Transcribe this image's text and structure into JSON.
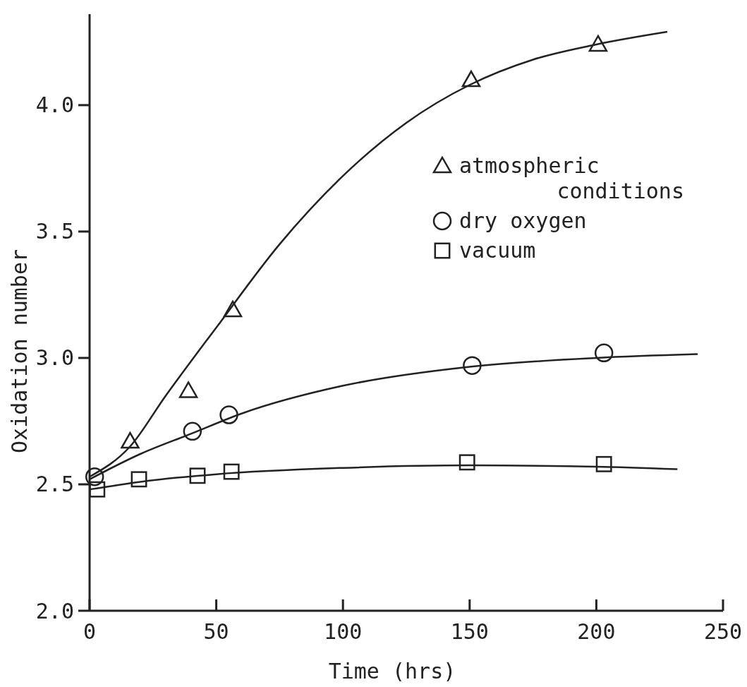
{
  "chart_data": {
    "type": "scatter",
    "xlabel": "Time (hrs)",
    "ylabel": "Oxidation number",
    "xlim": [
      0,
      250
    ],
    "ylim": [
      2.0,
      4.36
    ],
    "xticks": [
      0,
      50,
      100,
      150,
      200,
      250
    ],
    "yticks": [
      {
        "value": 2.0,
        "label": "2.0"
      },
      2.5,
      {
        "value": 3.0,
        "label": "3.0"
      },
      3.5,
      {
        "value": 4.0,
        "label": "4.0"
      }
    ],
    "grid": false,
    "legend": "right",
    "series": [
      {
        "name": "atmospheric conditions",
        "marker": "triangle",
        "color": "#222222",
        "x": [
          16,
          39,
          56.5,
          150.6,
          200.7
        ],
        "values": [
          2.67,
          2.87,
          3.19,
          4.1,
          4.24
        ]
      },
      {
        "name": "dry oxygen",
        "marker": "circle",
        "color": "#222222",
        "x": [
          2,
          40.6,
          55,
          151,
          203
        ],
        "values": [
          2.53,
          2.71,
          2.775,
          2.97,
          3.02
        ]
      },
      {
        "name": "vacuum",
        "marker": "square",
        "color": "#222222",
        "x": [
          3,
          19.5,
          42.6,
          56,
          149,
          203
        ],
        "values": [
          2.48,
          2.52,
          2.534,
          2.55,
          2.587,
          2.58
        ]
      },
      {
        "type": "line",
        "marker": "none",
        "color": "#222222",
        "x": [
          0,
          16,
          30,
          50,
          75,
          100,
          125,
          150,
          175,
          200,
          228
        ],
        "values": [
          2.53,
          2.65,
          2.85,
          3.12,
          3.45,
          3.72,
          3.93,
          4.08,
          4.18,
          4.24,
          4.29
        ]
      },
      {
        "type": "line",
        "marker": "none",
        "color": "#222222",
        "x": [
          0,
          20,
          40,
          60,
          100,
          150,
          200,
          240
        ],
        "values": [
          2.52,
          2.62,
          2.7,
          2.78,
          2.89,
          2.965,
          3.0,
          3.015
        ]
      },
      {
        "type": "line",
        "marker": "none",
        "color": "#222222",
        "x": [
          0,
          20,
          50,
          100,
          150,
          200,
          232
        ],
        "values": [
          2.48,
          2.51,
          2.54,
          2.565,
          2.575,
          2.57,
          2.56
        ]
      }
    ]
  }
}
